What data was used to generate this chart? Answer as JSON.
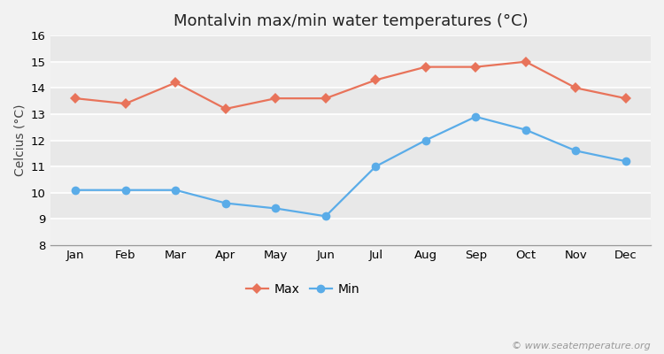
{
  "title": "Montalvin max/min water temperatures (°C)",
  "ylabel": "Celcius (°C)",
  "months": [
    "Jan",
    "Feb",
    "Mar",
    "Apr",
    "May",
    "Jun",
    "Jul",
    "Aug",
    "Sep",
    "Oct",
    "Nov",
    "Dec"
  ],
  "max_values": [
    13.6,
    13.4,
    14.2,
    13.2,
    13.6,
    13.6,
    14.3,
    14.8,
    14.8,
    15.0,
    14.0,
    13.6
  ],
  "min_values": [
    10.1,
    10.1,
    10.1,
    9.6,
    9.4,
    9.1,
    11.0,
    12.0,
    12.9,
    12.4,
    11.6,
    11.2
  ],
  "max_color": "#e8735a",
  "min_color": "#5aace8",
  "bg_color": "#f2f2f2",
  "plot_bg_color": "#e8e8e8",
  "stripe_color": "#ebebeb",
  "ylim": [
    8,
    16
  ],
  "yticks": [
    8,
    9,
    10,
    11,
    12,
    13,
    14,
    15,
    16
  ],
  "legend_labels": [
    "Max",
    "Min"
  ],
  "watermark": "© www.seatemperature.org",
  "title_fontsize": 13,
  "label_fontsize": 10,
  "tick_fontsize": 9.5,
  "legend_fontsize": 10,
  "watermark_fontsize": 8,
  "line_width": 1.6,
  "max_marker_size": 6,
  "min_marker_size": 7
}
